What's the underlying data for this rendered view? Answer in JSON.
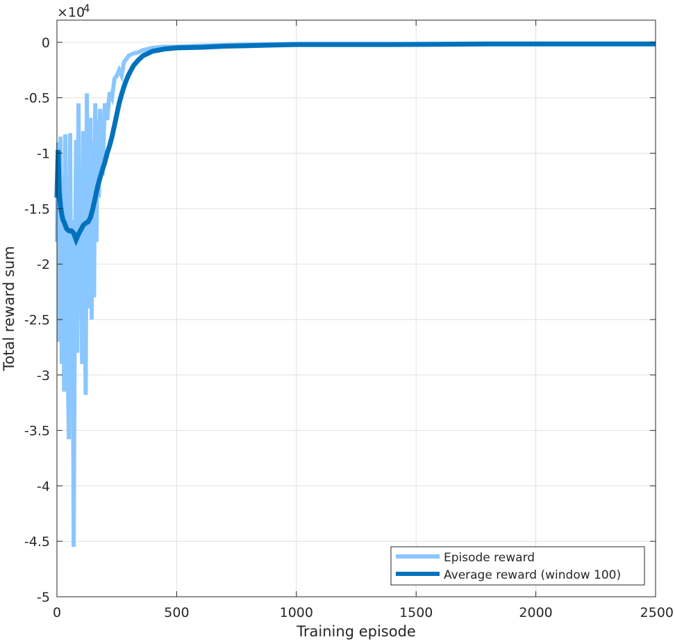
{
  "chart_data": {
    "type": "line",
    "xlabel": "Training episode",
    "ylabel": "Total reward sum",
    "y_exponent_label": "×10",
    "y_exponent_power": "4",
    "xlim": [
      0,
      2500
    ],
    "ylim": [
      -50000,
      2000
    ],
    "xticks": [
      0,
      500,
      1000,
      1500,
      2000,
      2500
    ],
    "xtick_labels": [
      "0",
      "500",
      "1000",
      "1500",
      "2000",
      "2500"
    ],
    "yticks": [
      0,
      -5000,
      -10000,
      -15000,
      -20000,
      -25000,
      -30000,
      -35000,
      -40000,
      -45000,
      -50000
    ],
    "ytick_labels": [
      "0",
      "-0.5",
      "-1",
      "-1.5",
      "-2",
      "-2.5",
      "-3",
      "-3.5",
      "-4",
      "-4.5",
      "-5"
    ],
    "grid": true,
    "box": true,
    "legend_position": "bottom-right",
    "series": [
      {
        "name": "Episode reward",
        "color": "#8ac6ff",
        "x": [
          0,
          5,
          10,
          15,
          20,
          25,
          30,
          35,
          40,
          45,
          50,
          55,
          60,
          65,
          70,
          75,
          80,
          85,
          90,
          95,
          100,
          105,
          110,
          115,
          120,
          125,
          130,
          135,
          140,
          145,
          150,
          155,
          160,
          165,
          170,
          175,
          180,
          190,
          200,
          210,
          220,
          230,
          240,
          250,
          260,
          270,
          280,
          290,
          300,
          320,
          340,
          360,
          380,
          400,
          450,
          500,
          600,
          700,
          800,
          900,
          1000,
          1200,
          1400,
          1600,
          1800,
          2000,
          2200,
          2400,
          2500
        ],
        "y": [
          -18000,
          -9000,
          -27000,
          -8500,
          -29000,
          -12000,
          -31500,
          -8300,
          -22000,
          -29000,
          -35800,
          -8200,
          -31500,
          -16000,
          -45500,
          -21000,
          -8800,
          -28000,
          -5500,
          -24000,
          -13000,
          -29000,
          -8000,
          -21000,
          -31800,
          -4600,
          -17000,
          -24000,
          -6800,
          -25000,
          -9000,
          -23000,
          -5500,
          -18000,
          -7000,
          -14000,
          -6000,
          -12000,
          -5500,
          -7000,
          -4500,
          -5000,
          -3300,
          -3000,
          -2500,
          -3000,
          -1800,
          -1500,
          -1200,
          -1000,
          -900,
          -700,
          -600,
          -500,
          -400,
          -400,
          -300,
          -250,
          -200,
          -180,
          -150,
          -150,
          -150,
          -150,
          -150,
          -150,
          -150,
          -150,
          -150
        ]
      },
      {
        "name": "Average reward (window 100)",
        "color": "#0072bd",
        "x": [
          0,
          5,
          10,
          15,
          20,
          25,
          30,
          40,
          50,
          60,
          70,
          80,
          90,
          100,
          110,
          120,
          130,
          140,
          150,
          160,
          170,
          180,
          190,
          200,
          210,
          220,
          230,
          240,
          250,
          260,
          270,
          280,
          290,
          300,
          320,
          340,
          360,
          380,
          400,
          450,
          500,
          600,
          700,
          800,
          900,
          1000,
          1200,
          1400,
          1600,
          1800,
          2000,
          2200,
          2400,
          2500
        ],
        "y": [
          -14000,
          -9700,
          -13500,
          -14800,
          -15500,
          -16000,
          -16200,
          -16800,
          -17000,
          -17000,
          -17200,
          -17800,
          -17300,
          -16900,
          -16500,
          -16300,
          -16200,
          -15800,
          -15000,
          -14000,
          -13000,
          -12200,
          -11500,
          -10800,
          -10000,
          -9300,
          -8500,
          -7500,
          -6500,
          -5500,
          -4700,
          -4000,
          -3400,
          -2900,
          -2100,
          -1600,
          -1200,
          -1000,
          -800,
          -600,
          -500,
          -450,
          -350,
          -300,
          -250,
          -200,
          -200,
          -200,
          -180,
          -150,
          -150,
          -150,
          -150,
          -150
        ]
      }
    ]
  }
}
